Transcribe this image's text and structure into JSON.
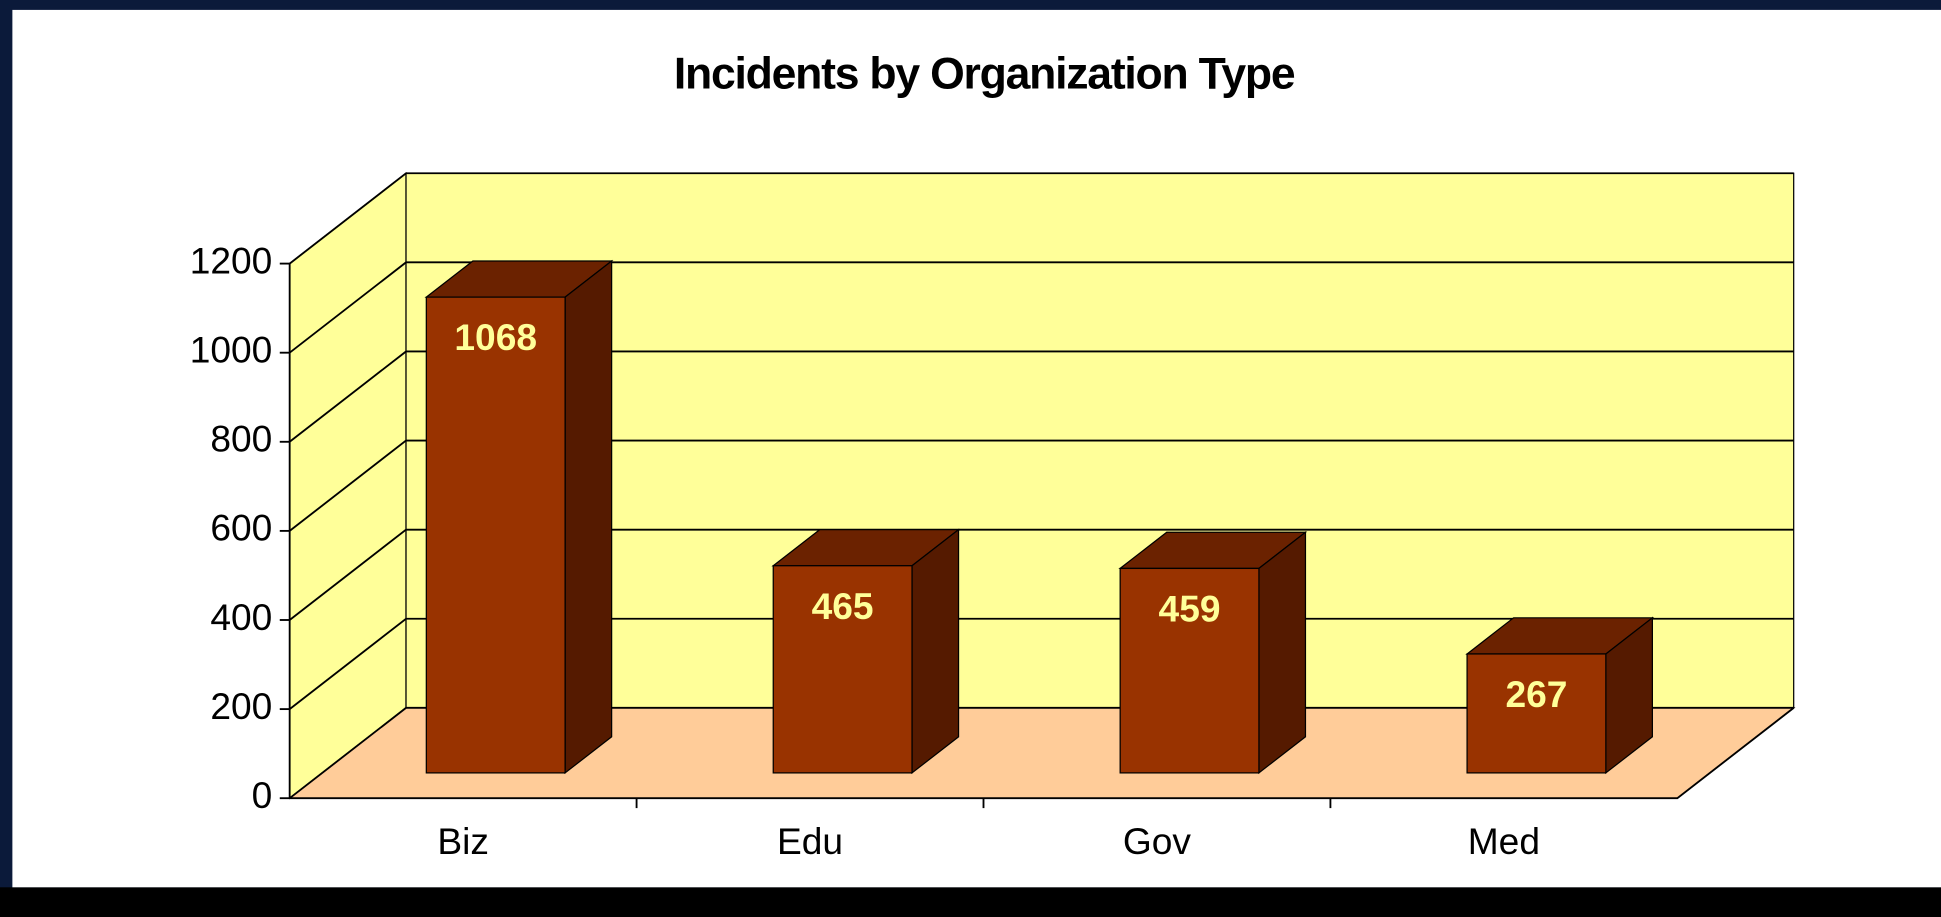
{
  "chart_data": {
    "type": "bar3d",
    "title": "Incidents by Organization Type",
    "categories": [
      "Biz",
      "Edu",
      "Gov",
      "Med"
    ],
    "values": [
      1068,
      465,
      459,
      267
    ],
    "color": "#993300",
    "ylim": [
      0,
      1200
    ],
    "yticks": [
      0,
      200,
      400,
      600,
      800,
      1000,
      1200
    ],
    "grid": true,
    "wall_color": "#ffff99",
    "floor_color": "#ffcc99"
  }
}
